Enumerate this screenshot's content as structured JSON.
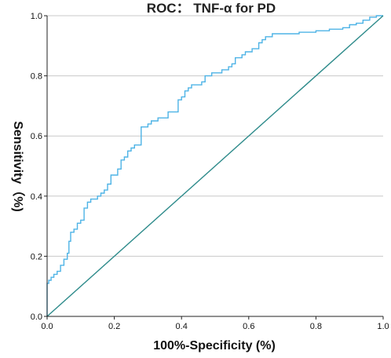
{
  "chart_data": {
    "type": "line",
    "title": "ROC： TNF-α for PD",
    "xlabel": "100%-Specificity (%)",
    "ylabel": "Sensitivity（%)",
    "xlim": [
      0,
      1
    ],
    "ylim": [
      0,
      1
    ],
    "x_ticks": [
      "0.0",
      "0.2",
      "0.4",
      "0.6",
      "0.8",
      "1.0"
    ],
    "y_ticks": [
      "0.0",
      "0.2",
      "0.4",
      "0.6",
      "0.8",
      "1.0"
    ],
    "grid": "horizontal",
    "legend": "none",
    "series": [
      {
        "role": "roc-curve",
        "color": "#4db3e6",
        "points": [
          [
            0,
            0
          ],
          [
            0,
            0.11
          ],
          [
            0.005,
            0.11
          ],
          [
            0.005,
            0.12
          ],
          [
            0.012,
            0.12
          ],
          [
            0.012,
            0.13
          ],
          [
            0.02,
            0.13
          ],
          [
            0.02,
            0.14
          ],
          [
            0.03,
            0.14
          ],
          [
            0.03,
            0.15
          ],
          [
            0.04,
            0.15
          ],
          [
            0.04,
            0.17
          ],
          [
            0.05,
            0.17
          ],
          [
            0.05,
            0.19
          ],
          [
            0.06,
            0.19
          ],
          [
            0.06,
            0.21
          ],
          [
            0.065,
            0.21
          ],
          [
            0.065,
            0.25
          ],
          [
            0.07,
            0.25
          ],
          [
            0.07,
            0.28
          ],
          [
            0.08,
            0.28
          ],
          [
            0.08,
            0.29
          ],
          [
            0.09,
            0.29
          ],
          [
            0.09,
            0.31
          ],
          [
            0.1,
            0.31
          ],
          [
            0.1,
            0.32
          ],
          [
            0.11,
            0.32
          ],
          [
            0.11,
            0.36
          ],
          [
            0.12,
            0.36
          ],
          [
            0.12,
            0.38
          ],
          [
            0.13,
            0.38
          ],
          [
            0.13,
            0.39
          ],
          [
            0.15,
            0.39
          ],
          [
            0.15,
            0.4
          ],
          [
            0.16,
            0.4
          ],
          [
            0.16,
            0.41
          ],
          [
            0.17,
            0.41
          ],
          [
            0.17,
            0.42
          ],
          [
            0.18,
            0.42
          ],
          [
            0.18,
            0.44
          ],
          [
            0.19,
            0.44
          ],
          [
            0.19,
            0.47
          ],
          [
            0.21,
            0.47
          ],
          [
            0.21,
            0.49
          ],
          [
            0.22,
            0.49
          ],
          [
            0.22,
            0.52
          ],
          [
            0.23,
            0.52
          ],
          [
            0.23,
            0.53
          ],
          [
            0.24,
            0.53
          ],
          [
            0.24,
            0.55
          ],
          [
            0.25,
            0.55
          ],
          [
            0.25,
            0.56
          ],
          [
            0.26,
            0.56
          ],
          [
            0.26,
            0.57
          ],
          [
            0.28,
            0.57
          ],
          [
            0.28,
            0.63
          ],
          [
            0.3,
            0.63
          ],
          [
            0.3,
            0.64
          ],
          [
            0.31,
            0.64
          ],
          [
            0.31,
            0.65
          ],
          [
            0.33,
            0.65
          ],
          [
            0.33,
            0.66
          ],
          [
            0.36,
            0.66
          ],
          [
            0.36,
            0.68
          ],
          [
            0.39,
            0.68
          ],
          [
            0.39,
            0.72
          ],
          [
            0.4,
            0.72
          ],
          [
            0.4,
            0.73
          ],
          [
            0.41,
            0.73
          ],
          [
            0.41,
            0.75
          ],
          [
            0.42,
            0.75
          ],
          [
            0.42,
            0.76
          ],
          [
            0.43,
            0.76
          ],
          [
            0.43,
            0.77
          ],
          [
            0.46,
            0.77
          ],
          [
            0.46,
            0.78
          ],
          [
            0.47,
            0.78
          ],
          [
            0.47,
            0.8
          ],
          [
            0.49,
            0.8
          ],
          [
            0.49,
            0.81
          ],
          [
            0.52,
            0.81
          ],
          [
            0.52,
            0.82
          ],
          [
            0.54,
            0.82
          ],
          [
            0.54,
            0.83
          ],
          [
            0.55,
            0.83
          ],
          [
            0.55,
            0.84
          ],
          [
            0.56,
            0.84
          ],
          [
            0.56,
            0.86
          ],
          [
            0.58,
            0.86
          ],
          [
            0.58,
            0.87
          ],
          [
            0.59,
            0.87
          ],
          [
            0.59,
            0.88
          ],
          [
            0.61,
            0.88
          ],
          [
            0.61,
            0.89
          ],
          [
            0.63,
            0.89
          ],
          [
            0.63,
            0.91
          ],
          [
            0.64,
            0.91
          ],
          [
            0.64,
            0.92
          ],
          [
            0.65,
            0.92
          ],
          [
            0.65,
            0.93
          ],
          [
            0.67,
            0.93
          ],
          [
            0.67,
            0.94
          ],
          [
            0.75,
            0.94
          ],
          [
            0.75,
            0.945
          ],
          [
            0.8,
            0.945
          ],
          [
            0.8,
            0.95
          ],
          [
            0.84,
            0.95
          ],
          [
            0.84,
            0.955
          ],
          [
            0.88,
            0.955
          ],
          [
            0.88,
            0.96
          ],
          [
            0.9,
            0.96
          ],
          [
            0.9,
            0.97
          ],
          [
            0.92,
            0.97
          ],
          [
            0.92,
            0.975
          ],
          [
            0.94,
            0.975
          ],
          [
            0.94,
            0.985
          ],
          [
            0.96,
            0.985
          ],
          [
            0.96,
            0.995
          ],
          [
            0.98,
            0.995
          ],
          [
            0.98,
            1
          ],
          [
            1,
            1
          ]
        ]
      },
      {
        "role": "reference-line",
        "color": "#2e8b8b",
        "points": [
          [
            0,
            0
          ],
          [
            1,
            1
          ]
        ]
      }
    ]
  }
}
